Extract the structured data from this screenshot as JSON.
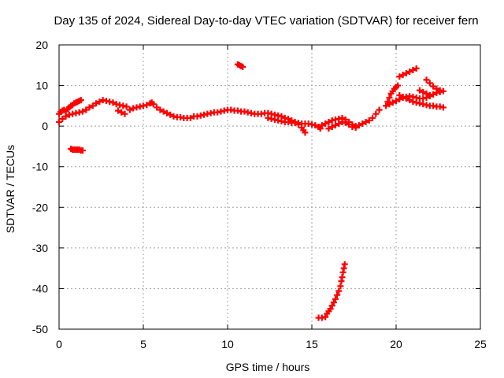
{
  "chart_data": {
    "type": "scatter",
    "title": "Day 135 of 2024, Sidereal Day-to-day VTEC variation (SDTVAR) for receiver fern",
    "xlabel": "GPS time / hours",
    "ylabel": "SDTVAR / TECUs",
    "xlim": [
      0,
      25
    ],
    "ylim": [
      -50,
      20
    ],
    "xticks": [
      0,
      5,
      10,
      15,
      20,
      25
    ],
    "yticks": [
      -50,
      -40,
      -30,
      -20,
      -10,
      0,
      10,
      20
    ],
    "xtick_labels": [
      "0",
      "5",
      "10",
      "15",
      "20",
      "25"
    ],
    "ytick_labels": [
      "-50",
      "-40",
      "-30",
      "-20",
      "-10",
      "0",
      "10",
      "20"
    ],
    "grid": true,
    "marker": "+",
    "color": "#ff0000",
    "series": [
      {
        "name": "main-band",
        "points": [
          [
            0.0,
            3.0
          ],
          [
            0.1,
            3.5
          ],
          [
            0.2,
            3.8
          ],
          [
            0.3,
            4.0
          ],
          [
            0.4,
            3.6
          ],
          [
            0.5,
            4.2
          ],
          [
            0.6,
            4.6
          ],
          [
            0.7,
            5.0
          ],
          [
            0.8,
            5.2
          ],
          [
            0.9,
            5.6
          ],
          [
            1.0,
            5.8
          ],
          [
            1.1,
            6.0
          ],
          [
            1.2,
            6.2
          ],
          [
            1.3,
            6.4
          ],
          [
            0.0,
            1.0
          ],
          [
            0.2,
            1.8
          ],
          [
            0.4,
            2.4
          ],
          [
            0.6,
            2.8
          ],
          [
            0.8,
            3.0
          ],
          [
            1.0,
            3.2
          ],
          [
            1.2,
            3.4
          ],
          [
            1.4,
            3.6
          ],
          [
            1.6,
            4.0
          ],
          [
            1.8,
            4.6
          ],
          [
            2.0,
            5.0
          ],
          [
            2.2,
            5.6
          ],
          [
            2.4,
            6.0
          ],
          [
            2.6,
            6.4
          ],
          [
            2.8,
            6.2
          ],
          [
            3.0,
            6.0
          ],
          [
            3.2,
            5.8
          ],
          [
            3.4,
            5.4
          ],
          [
            3.6,
            5.2
          ],
          [
            3.8,
            5.0
          ],
          [
            4.0,
            4.8
          ],
          [
            3.5,
            3.8
          ],
          [
            3.7,
            3.4
          ],
          [
            3.9,
            3.0
          ],
          [
            4.2,
            4.0
          ],
          [
            4.4,
            4.4
          ],
          [
            4.6,
            4.6
          ],
          [
            4.8,
            4.8
          ],
          [
            5.0,
            5.0
          ],
          [
            5.2,
            5.2
          ],
          [
            5.4,
            5.6
          ],
          [
            5.5,
            5.8
          ],
          [
            5.6,
            5.4
          ],
          [
            5.8,
            4.6
          ],
          [
            6.0,
            4.0
          ],
          [
            6.2,
            3.6
          ],
          [
            6.4,
            3.2
          ],
          [
            6.6,
            2.8
          ],
          [
            6.8,
            2.4
          ],
          [
            7.0,
            2.2
          ],
          [
            7.2,
            2.2
          ],
          [
            7.4,
            2.0
          ],
          [
            7.6,
            2.0
          ],
          [
            7.8,
            2.0
          ],
          [
            8.0,
            2.4
          ],
          [
            8.2,
            2.4
          ],
          [
            8.4,
            2.6
          ],
          [
            8.6,
            2.8
          ],
          [
            8.8,
            3.0
          ],
          [
            9.0,
            3.2
          ],
          [
            9.2,
            3.4
          ],
          [
            9.4,
            3.4
          ],
          [
            9.6,
            3.6
          ],
          [
            9.8,
            3.8
          ],
          [
            10.0,
            4.0
          ],
          [
            10.2,
            4.0
          ],
          [
            10.4,
            3.8
          ],
          [
            10.6,
            3.8
          ],
          [
            10.8,
            3.6
          ],
          [
            11.0,
            3.6
          ],
          [
            11.2,
            3.4
          ],
          [
            11.4,
            3.2
          ],
          [
            11.6,
            3.0
          ],
          [
            11.8,
            3.0
          ],
          [
            12.0,
            3.0
          ],
          [
            12.2,
            3.2
          ],
          [
            12.4,
            3.2
          ],
          [
            12.6,
            3.0
          ],
          [
            12.8,
            2.8
          ],
          [
            13.0,
            2.6
          ],
          [
            13.2,
            2.4
          ],
          [
            13.4,
            2.0
          ],
          [
            13.6,
            1.8
          ],
          [
            13.8,
            1.4
          ],
          [
            14.0,
            1.0
          ],
          [
            14.2,
            0.4
          ],
          [
            14.4,
            -0.4
          ],
          [
            14.5,
            -1.0
          ],
          [
            14.6,
            -1.6
          ],
          [
            12.4,
            2.0
          ],
          [
            12.6,
            1.8
          ],
          [
            12.8,
            1.6
          ],
          [
            13.0,
            1.4
          ],
          [
            13.2,
            1.2
          ],
          [
            13.4,
            1.0
          ],
          [
            13.6,
            1.0
          ],
          [
            13.8,
            0.8
          ],
          [
            14.0,
            0.8
          ],
          [
            14.2,
            0.8
          ],
          [
            14.4,
            0.6
          ],
          [
            14.6,
            0.6
          ],
          [
            14.8,
            0.6
          ],
          [
            15.0,
            0.4
          ],
          [
            15.2,
            0.2
          ],
          [
            15.4,
            -0.2
          ],
          [
            15.5,
            -0.6
          ],
          [
            15.6,
            0.2
          ],
          [
            15.8,
            0.6
          ],
          [
            16.0,
            1.0
          ],
          [
            16.2,
            1.4
          ],
          [
            16.4,
            1.6
          ],
          [
            16.6,
            1.8
          ],
          [
            16.8,
            2.0
          ],
          [
            17.0,
            1.6
          ],
          [
            17.2,
            1.0
          ],
          [
            17.4,
            0.4
          ],
          [
            17.6,
            0.0
          ],
          [
            17.8,
            0.2
          ],
          [
            18.0,
            0.6
          ],
          [
            18.2,
            1.0
          ],
          [
            18.4,
            1.4
          ],
          [
            18.6,
            2.0
          ],
          [
            18.8,
            3.0
          ],
          [
            19.0,
            4.0
          ],
          [
            16.0,
            -0.6
          ],
          [
            16.2,
            -0.2
          ],
          [
            16.4,
            0.2
          ],
          [
            16.6,
            0.6
          ],
          [
            16.8,
            1.0
          ],
          [
            17.0,
            0.8
          ],
          [
            17.2,
            0.4
          ],
          [
            17.4,
            -0.2
          ],
          [
            17.6,
            -0.4
          ]
        ]
      },
      {
        "name": "late-cluster",
        "points": [
          [
            19.4,
            5.0
          ],
          [
            19.5,
            6.0
          ],
          [
            19.6,
            7.0
          ],
          [
            19.7,
            8.0
          ],
          [
            19.8,
            8.6
          ],
          [
            19.9,
            9.2
          ],
          [
            20.0,
            9.6
          ],
          [
            20.1,
            10.0
          ],
          [
            19.6,
            5.4
          ],
          [
            19.8,
            5.8
          ],
          [
            20.0,
            6.2
          ],
          [
            20.2,
            6.6
          ],
          [
            20.4,
            7.0
          ],
          [
            20.6,
            7.2
          ],
          [
            20.8,
            7.4
          ],
          [
            21.0,
            7.2
          ],
          [
            21.2,
            7.0
          ],
          [
            21.4,
            6.8
          ],
          [
            21.6,
            6.8
          ],
          [
            21.8,
            7.0
          ],
          [
            22.0,
            7.4
          ],
          [
            22.2,
            7.8
          ],
          [
            22.4,
            8.2
          ],
          [
            22.6,
            8.4
          ],
          [
            22.8,
            8.6
          ],
          [
            20.2,
            7.6
          ],
          [
            20.4,
            7.2
          ],
          [
            20.6,
            6.8
          ],
          [
            20.8,
            6.4
          ],
          [
            21.0,
            6.0
          ],
          [
            21.2,
            5.8
          ],
          [
            21.4,
            5.6
          ],
          [
            21.6,
            5.4
          ],
          [
            21.8,
            5.2
          ],
          [
            22.0,
            5.0
          ],
          [
            22.2,
            5.0
          ],
          [
            22.4,
            4.8
          ],
          [
            22.6,
            4.8
          ],
          [
            22.8,
            4.6
          ],
          [
            20.2,
            12.2
          ],
          [
            20.4,
            12.6
          ],
          [
            20.6,
            13.0
          ],
          [
            20.8,
            13.4
          ],
          [
            21.0,
            13.8
          ],
          [
            21.2,
            14.2
          ],
          [
            21.8,
            11.4
          ],
          [
            22.0,
            10.6
          ],
          [
            22.2,
            9.8
          ],
          [
            22.4,
            9.2
          ],
          [
            22.6,
            8.8
          ],
          [
            21.4,
            8.8
          ],
          [
            21.6,
            8.4
          ],
          [
            21.8,
            8.0
          ],
          [
            22.0,
            7.6
          ]
        ]
      },
      {
        "name": "isolated-patches",
        "points": [
          [
            0.7,
            -5.6
          ],
          [
            0.8,
            -5.8
          ],
          [
            0.9,
            -5.8
          ],
          [
            1.0,
            -5.8
          ],
          [
            1.1,
            -5.8
          ],
          [
            1.2,
            -5.8
          ],
          [
            1.3,
            -6.0
          ],
          [
            1.4,
            -6.0
          ],
          [
            10.6,
            15.2
          ],
          [
            10.7,
            15.0
          ],
          [
            10.8,
            14.8
          ],
          [
            10.9,
            14.6
          ]
        ]
      },
      {
        "name": "negative-arc",
        "points": [
          [
            15.4,
            -47.2
          ],
          [
            15.6,
            -47.2
          ],
          [
            15.8,
            -47.0
          ],
          [
            15.9,
            -46.2
          ],
          [
            16.0,
            -45.6
          ],
          [
            16.1,
            -45.0
          ],
          [
            16.2,
            -44.2
          ],
          [
            16.3,
            -43.4
          ],
          [
            16.4,
            -42.6
          ],
          [
            16.5,
            -41.6
          ],
          [
            16.6,
            -40.6
          ],
          [
            16.7,
            -39.4
          ],
          [
            16.75,
            -38.2
          ],
          [
            16.8,
            -37.2
          ],
          [
            16.85,
            -36.0
          ],
          [
            16.9,
            -35.0
          ],
          [
            16.95,
            -34.0
          ]
        ]
      }
    ]
  }
}
